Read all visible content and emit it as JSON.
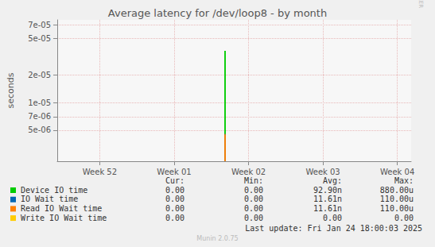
{
  "chart_data": {
    "type": "line",
    "title": "Average latency for /dev/loop8 - by month",
    "y_label": "seconds",
    "log": "y",
    "grid": true,
    "x": [
      15.72,
      15.86
    ],
    "xlim": [
      0,
      33.3
    ],
    "xticks": [
      {
        "value": 4,
        "label": "Week 52"
      },
      {
        "value": 11,
        "label": "Week 01"
      },
      {
        "value": 18,
        "label": "Week 02"
      },
      {
        "value": 25,
        "label": "Week 03"
      },
      {
        "value": 32,
        "label": "Week 04"
      }
    ],
    "ylim": [
      2.3e-06,
      7.9e-05
    ],
    "yticks": [
      {
        "value": 5e-06,
        "label": "5e-06"
      },
      {
        "value": 7e-06,
        "label": "7e-06"
      },
      {
        "value": 1e-05,
        "label": "1e-05"
      },
      {
        "value": 2e-05,
        "label": "2e-05"
      },
      {
        "value": 5e-05,
        "label": "5e-05"
      },
      {
        "value": 7e-05,
        "label": "7e-05"
      }
    ],
    "stats_header": [
      "Cur:",
      "Min:",
      "Avg:",
      "Max:"
    ],
    "series": [
      {
        "name": "Device IO time",
        "color": "#00cc00",
        "values": [
          3.6e-05,
          3.6e-05
        ],
        "stats": [
          "0.00",
          "0.00",
          "92.90n",
          "880.00u"
        ]
      },
      {
        "name": "IO Wait time",
        "color": "#0066b3",
        "values": [
          4.5e-06,
          4.5e-06
        ],
        "stats": [
          "0.00",
          "0.00",
          "11.61n",
          "110.00u"
        ]
      },
      {
        "name": "Read IO Wait time",
        "color": "#ff8000",
        "values": [
          4.5e-06,
          4.5e-06
        ],
        "stats": [
          "0.00",
          "0.00",
          "11.61n",
          "110.00u"
        ]
      },
      {
        "name": "Write IO Wait time",
        "color": "#ffcc00",
        "values": [
          null,
          null
        ],
        "stats": [
          "0.00",
          "0.00",
          "0.00",
          "0.00"
        ]
      }
    ],
    "footer": "Last update: Fri Jan 24 18:00:03 2025",
    "credit": "Munin 2.0.75",
    "watermark": "RRDTOOL / TOBI OETIKER"
  }
}
